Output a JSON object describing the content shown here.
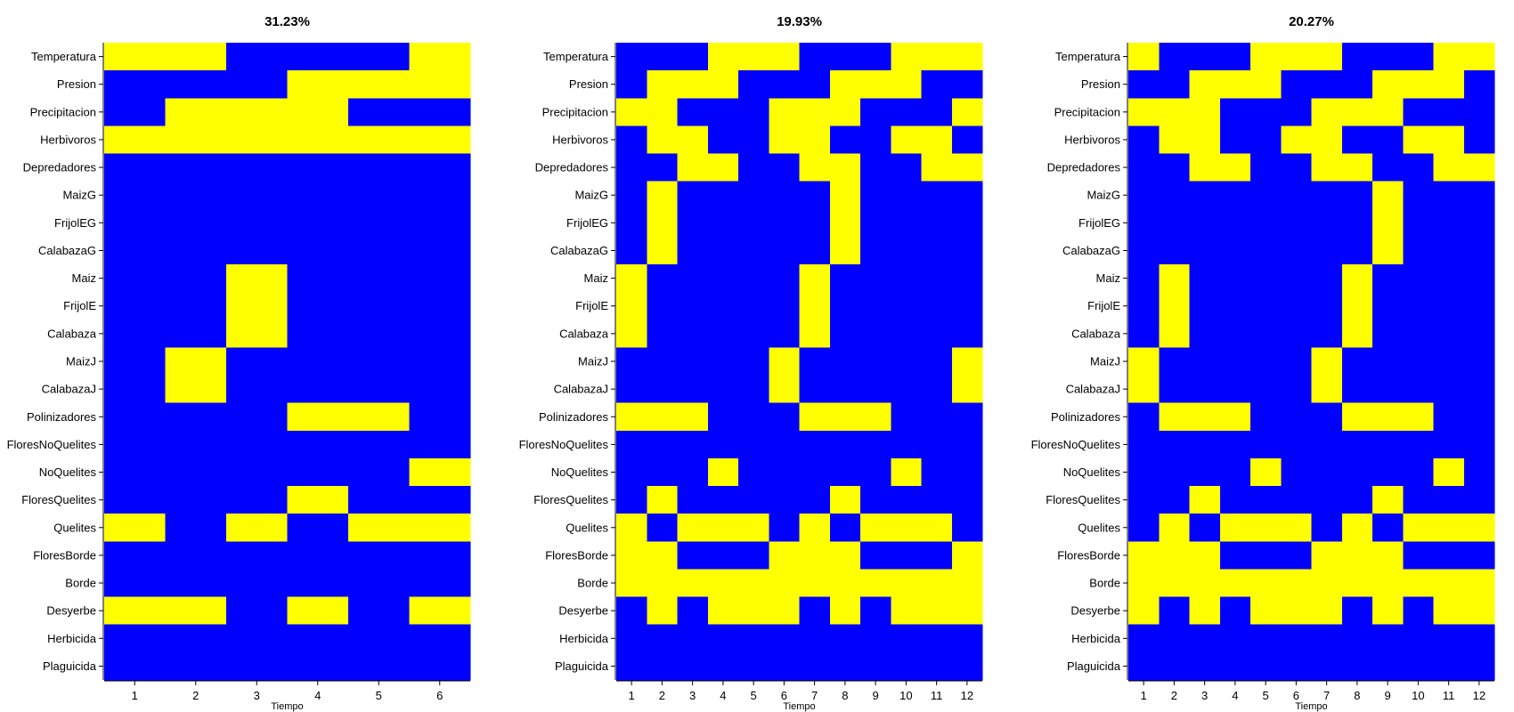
{
  "colors": {
    "off": "#0000ff",
    "on": "#ffff00"
  },
  "chart_data": [
    {
      "type": "heatmap",
      "title": "31.23%",
      "xlabel": "Tiempo",
      "ylabel": "",
      "x": [
        "1",
        "2",
        "3",
        "4",
        "5",
        "6"
      ],
      "rows": [
        "Temperatura",
        "Presion",
        "Precipitacion",
        "Herbivoros",
        "Depredadores",
        "MaizG",
        "FrijolEG",
        "CalabazaG",
        "Maiz",
        "FrijolE",
        "Calabaza",
        "MaizJ",
        "CalabazaJ",
        "Polinizadores",
        "FloresNoQuelites",
        "NoQuelites",
        "FloresQuelites",
        "Quelites",
        "FloresBorde",
        "Borde",
        "Desyerbe",
        "Herbicida",
        "Plaguicida"
      ],
      "values": [
        [
          1,
          1,
          0,
          0,
          0,
          1
        ],
        [
          0,
          0,
          0,
          1,
          1,
          1
        ],
        [
          0,
          1,
          1,
          1,
          0,
          0
        ],
        [
          1,
          1,
          1,
          1,
          1,
          1
        ],
        [
          0,
          0,
          0,
          0,
          0,
          0
        ],
        [
          0,
          0,
          0,
          0,
          0,
          0
        ],
        [
          0,
          0,
          0,
          0,
          0,
          0
        ],
        [
          0,
          0,
          0,
          0,
          0,
          0
        ],
        [
          0,
          0,
          1,
          0,
          0,
          0
        ],
        [
          0,
          0,
          1,
          0,
          0,
          0
        ],
        [
          0,
          0,
          1,
          0,
          0,
          0
        ],
        [
          0,
          1,
          0,
          0,
          0,
          0
        ],
        [
          0,
          1,
          0,
          0,
          0,
          0
        ],
        [
          0,
          0,
          0,
          1,
          1,
          0
        ],
        [
          0,
          0,
          0,
          0,
          0,
          0
        ],
        [
          0,
          0,
          0,
          0,
          0,
          1
        ],
        [
          0,
          0,
          0,
          1,
          0,
          0
        ],
        [
          1,
          0,
          1,
          0,
          1,
          1
        ],
        [
          0,
          0,
          0,
          0,
          0,
          0
        ],
        [
          0,
          0,
          0,
          0,
          0,
          0
        ],
        [
          1,
          1,
          0,
          1,
          0,
          1
        ],
        [
          0,
          0,
          0,
          0,
          0,
          0
        ],
        [
          0,
          0,
          0,
          0,
          0,
          0
        ]
      ]
    },
    {
      "type": "heatmap",
      "title": "19.93%",
      "xlabel": "Tiempo",
      "ylabel": "",
      "x": [
        "1",
        "2",
        "3",
        "4",
        "5",
        "6",
        "7",
        "8",
        "9",
        "10",
        "11",
        "12"
      ],
      "rows": [
        "Temperatura",
        "Presion",
        "Precipitacion",
        "Herbivoros",
        "Depredadores",
        "MaizG",
        "FrijolEG",
        "CalabazaG",
        "Maiz",
        "FrijolE",
        "Calabaza",
        "MaizJ",
        "CalabazaJ",
        "Polinizadores",
        "FloresNoQuelites",
        "NoQuelites",
        "FloresQuelites",
        "Quelites",
        "FloresBorde",
        "Borde",
        "Desyerbe",
        "Herbicida",
        "Plaguicida"
      ],
      "values": [
        [
          0,
          0,
          0,
          1,
          1,
          1,
          0,
          0,
          0,
          1,
          1,
          1
        ],
        [
          0,
          1,
          1,
          1,
          0,
          0,
          0,
          1,
          1,
          1,
          0,
          0
        ],
        [
          1,
          1,
          0,
          0,
          0,
          1,
          1,
          1,
          0,
          0,
          0,
          1
        ],
        [
          0,
          1,
          1,
          0,
          0,
          1,
          1,
          0,
          0,
          1,
          1,
          0
        ],
        [
          0,
          0,
          1,
          1,
          0,
          0,
          1,
          1,
          0,
          0,
          1,
          1
        ],
        [
          0,
          1,
          0,
          0,
          0,
          0,
          0,
          1,
          0,
          0,
          0,
          0
        ],
        [
          0,
          1,
          0,
          0,
          0,
          0,
          0,
          1,
          0,
          0,
          0,
          0
        ],
        [
          0,
          1,
          0,
          0,
          0,
          0,
          0,
          1,
          0,
          0,
          0,
          0
        ],
        [
          1,
          0,
          0,
          0,
          0,
          0,
          1,
          0,
          0,
          0,
          0,
          0
        ],
        [
          1,
          0,
          0,
          0,
          0,
          0,
          1,
          0,
          0,
          0,
          0,
          0
        ],
        [
          1,
          0,
          0,
          0,
          0,
          0,
          1,
          0,
          0,
          0,
          0,
          0
        ],
        [
          0,
          0,
          0,
          0,
          0,
          1,
          0,
          0,
          0,
          0,
          0,
          1
        ],
        [
          0,
          0,
          0,
          0,
          0,
          1,
          0,
          0,
          0,
          0,
          0,
          1
        ],
        [
          1,
          1,
          1,
          0,
          0,
          0,
          1,
          1,
          1,
          0,
          0,
          0
        ],
        [
          0,
          0,
          0,
          0,
          0,
          0,
          0,
          0,
          0,
          0,
          0,
          0
        ],
        [
          0,
          0,
          0,
          1,
          0,
          0,
          0,
          0,
          0,
          1,
          0,
          0
        ],
        [
          0,
          1,
          0,
          0,
          0,
          0,
          0,
          1,
          0,
          0,
          0,
          0
        ],
        [
          1,
          0,
          1,
          1,
          1,
          0,
          1,
          0,
          1,
          1,
          1,
          0
        ],
        [
          1,
          1,
          0,
          0,
          0,
          1,
          1,
          1,
          0,
          0,
          0,
          1
        ],
        [
          1,
          1,
          1,
          1,
          1,
          1,
          1,
          1,
          1,
          1,
          1,
          1
        ],
        [
          0,
          1,
          0,
          1,
          1,
          1,
          0,
          1,
          0,
          1,
          1,
          1
        ],
        [
          0,
          0,
          0,
          0,
          0,
          0,
          0,
          0,
          0,
          0,
          0,
          0
        ],
        [
          0,
          0,
          0,
          0,
          0,
          0,
          0,
          0,
          0,
          0,
          0,
          0
        ]
      ]
    },
    {
      "type": "heatmap",
      "title": "20.27%",
      "xlabel": "Tiempo",
      "ylabel": "",
      "x": [
        "1",
        "2",
        "3",
        "4",
        "5",
        "6",
        "7",
        "8",
        "9",
        "10",
        "11",
        "12"
      ],
      "rows": [
        "Temperatura",
        "Presion",
        "Precipitacion",
        "Herbivoros",
        "Depredadores",
        "MaizG",
        "FrijolEG",
        "CalabazaG",
        "Maiz",
        "FrijolE",
        "Calabaza",
        "MaizJ",
        "CalabazaJ",
        "Polinizadores",
        "FloresNoQuelites",
        "NoQuelites",
        "FloresQuelites",
        "Quelites",
        "FloresBorde",
        "Borde",
        "Desyerbe",
        "Herbicida",
        "Plaguicida"
      ],
      "values": [
        [
          1,
          0,
          0,
          0,
          1,
          1,
          1,
          0,
          0,
          0,
          1,
          1
        ],
        [
          0,
          0,
          1,
          1,
          1,
          0,
          0,
          0,
          1,
          1,
          1,
          0
        ],
        [
          1,
          1,
          1,
          0,
          0,
          0,
          1,
          1,
          1,
          0,
          0,
          0
        ],
        [
          0,
          1,
          1,
          0,
          0,
          1,
          1,
          0,
          0,
          1,
          1,
          0
        ],
        [
          0,
          0,
          1,
          1,
          0,
          0,
          1,
          1,
          0,
          0,
          1,
          1
        ],
        [
          0,
          0,
          0,
          0,
          0,
          0,
          0,
          0,
          1,
          0,
          0,
          0
        ],
        [
          0,
          0,
          0,
          0,
          0,
          0,
          0,
          0,
          1,
          0,
          0,
          0
        ],
        [
          0,
          0,
          0,
          0,
          0,
          0,
          0,
          0,
          1,
          0,
          0,
          0
        ],
        [
          0,
          1,
          0,
          0,
          0,
          0,
          0,
          1,
          0,
          0,
          0,
          0
        ],
        [
          0,
          1,
          0,
          0,
          0,
          0,
          0,
          1,
          0,
          0,
          0,
          0
        ],
        [
          0,
          1,
          0,
          0,
          0,
          0,
          0,
          1,
          0,
          0,
          0,
          0
        ],
        [
          1,
          0,
          0,
          0,
          0,
          0,
          1,
          0,
          0,
          0,
          0,
          0
        ],
        [
          1,
          0,
          0,
          0,
          0,
          0,
          1,
          0,
          0,
          0,
          0,
          0
        ],
        [
          0,
          1,
          1,
          1,
          0,
          0,
          0,
          1,
          1,
          1,
          0,
          0
        ],
        [
          0,
          0,
          0,
          0,
          0,
          0,
          0,
          0,
          0,
          0,
          0,
          0
        ],
        [
          0,
          0,
          0,
          0,
          1,
          0,
          0,
          0,
          0,
          0,
          1,
          0
        ],
        [
          0,
          0,
          1,
          0,
          0,
          0,
          0,
          0,
          1,
          0,
          0,
          0
        ],
        [
          0,
          1,
          0,
          1,
          1,
          1,
          0,
          1,
          0,
          1,
          1,
          1
        ],
        [
          1,
          1,
          1,
          0,
          0,
          0,
          1,
          1,
          1,
          0,
          0,
          0
        ],
        [
          1,
          1,
          1,
          1,
          1,
          1,
          1,
          1,
          1,
          1,
          1,
          1
        ],
        [
          1,
          0,
          1,
          0,
          1,
          1,
          1,
          0,
          1,
          0,
          1,
          1
        ],
        [
          0,
          0,
          0,
          0,
          0,
          0,
          0,
          0,
          0,
          0,
          0,
          0
        ],
        [
          0,
          0,
          0,
          0,
          0,
          0,
          0,
          0,
          0,
          0,
          0,
          0
        ]
      ]
    }
  ]
}
